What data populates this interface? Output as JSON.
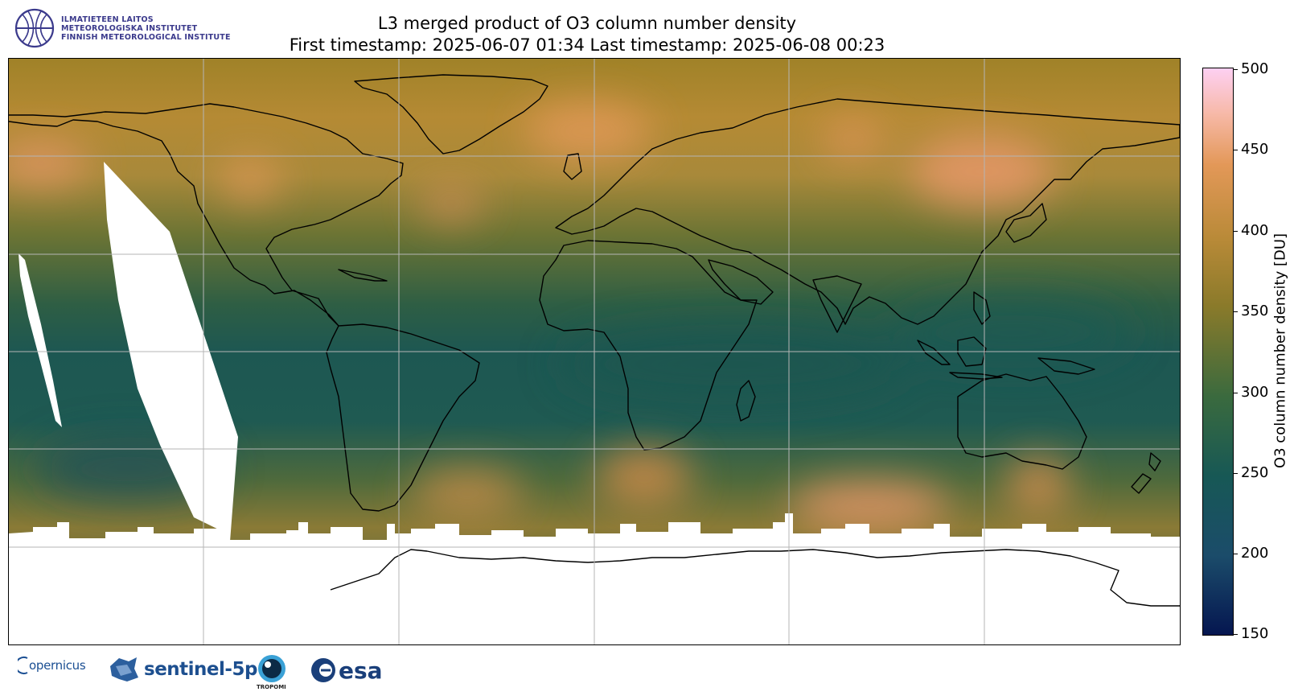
{
  "header": {
    "org_lines": [
      "ILMATIETEEN LAITOS",
      "METEOROLOGISKA INSTITUTET",
      "FINNISH METEOROLOGICAL INSTITUTE"
    ],
    "title_line_1": "L3 merged product of O3 column number density",
    "title_line_2": "First timestamp: 2025-06-07 01:34   Last timestamp: 2025-06-08 00:23"
  },
  "map": {
    "projection": "equirectangular",
    "variable": "O3 column number density",
    "unit": "DU",
    "features": [
      "coastlines",
      "graticule",
      "orbit gaps (no data)",
      "polar night mask"
    ]
  },
  "colorbar": {
    "label": "O3 column number density [DU]",
    "min": 150,
    "max": 500,
    "ticks": [
      "500",
      "450",
      "400",
      "350",
      "300",
      "250",
      "200",
      "150"
    ],
    "colormap_stops": [
      "#051650",
      "#1b4c6a",
      "#175855",
      "#3a6a3e",
      "#8a7a2a",
      "#b98a38",
      "#e39858",
      "#f7b9a8",
      "#fdd0f2"
    ]
  },
  "footer": {
    "logos": [
      "opernicus",
      "sentinel-5p",
      "TROPOMI",
      "esa"
    ]
  }
}
